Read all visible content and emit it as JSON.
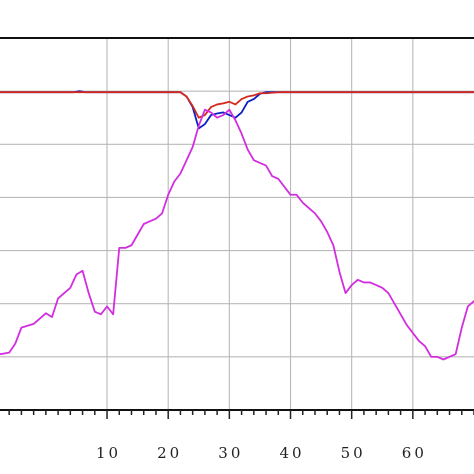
{
  "chart_data": {
    "type": "line",
    "title": "",
    "xlabel": "",
    "ylabel": "",
    "xlim": [
      -7.5,
      70
    ],
    "ylim": [
      0,
      7
    ],
    "x_ticks": [
      10,
      20,
      30,
      40,
      50,
      60
    ],
    "x_tick_labels": [
      "10",
      "20",
      "30",
      "40",
      "50",
      "60"
    ],
    "x_minor_step": 2,
    "y_gridlines": [
      1,
      2,
      3,
      4,
      5,
      6
    ],
    "grid": true,
    "legend": "none",
    "series": [
      {
        "color": "#0b1fc4",
        "x": [
          -7.5,
          4.5,
          5.5,
          6.5,
          22,
          23,
          24,
          25,
          26,
          27,
          28,
          29,
          30,
          31,
          32,
          33,
          34,
          35,
          36,
          70
        ],
        "y": [
          5.98,
          5.98,
          6.0,
          5.98,
          5.98,
          5.9,
          5.7,
          5.3,
          5.38,
          5.55,
          5.58,
          5.6,
          5.55,
          5.5,
          5.6,
          5.8,
          5.85,
          5.95,
          5.98,
          5.98
        ]
      },
      {
        "color": "#d42a1e",
        "x": [
          -7.5,
          22,
          23,
          24,
          25,
          26,
          27,
          28,
          29,
          30,
          31,
          32,
          33,
          34,
          35,
          36,
          37,
          38,
          70
        ],
        "y": [
          5.98,
          5.98,
          5.9,
          5.72,
          5.5,
          5.55,
          5.7,
          5.75,
          5.77,
          5.8,
          5.75,
          5.85,
          5.9,
          5.92,
          5.96,
          5.96,
          5.97,
          5.98,
          5.98
        ]
      },
      {
        "color": "#d32de0",
        "x": [
          -7.5,
          -6,
          -5,
          -4,
          -2,
          0,
          1,
          2,
          3,
          4,
          5,
          6,
          7,
          8,
          9,
          10,
          11,
          12,
          13,
          14,
          15,
          16,
          17,
          18,
          19,
          20,
          21,
          22,
          23,
          24,
          25,
          26,
          27,
          28,
          29,
          30,
          31,
          32,
          33,
          34,
          35,
          36,
          37,
          38,
          39,
          40,
          41,
          42,
          43,
          44,
          45,
          46,
          47,
          48,
          49,
          50,
          51,
          52,
          53,
          54,
          55,
          56,
          57,
          58,
          59,
          60,
          61,
          62,
          63,
          64,
          65,
          66,
          67,
          68,
          69,
          70
        ],
        "y": [
          1.05,
          1.08,
          1.25,
          1.55,
          1.62,
          1.82,
          1.75,
          2.1,
          2.2,
          2.3,
          2.55,
          2.62,
          2.2,
          1.85,
          1.8,
          1.95,
          1.8,
          3.05,
          3.05,
          3.1,
          3.3,
          3.5,
          3.55,
          3.6,
          3.7,
          4.05,
          4.3,
          4.45,
          4.7,
          4.95,
          5.35,
          5.65,
          5.6,
          5.5,
          5.55,
          5.65,
          5.45,
          5.2,
          4.9,
          4.7,
          4.65,
          4.6,
          4.4,
          4.35,
          4.2,
          4.05,
          4.05,
          3.9,
          3.8,
          3.7,
          3.55,
          3.35,
          3.1,
          2.6,
          2.2,
          2.35,
          2.45,
          2.4,
          2.4,
          2.35,
          2.3,
          2.2,
          2.0,
          1.8,
          1.6,
          1.45,
          1.3,
          1.2,
          1.0,
          1.0,
          0.95,
          1.0,
          1.05,
          1.55,
          1.95,
          2.05
        ]
      }
    ]
  }
}
